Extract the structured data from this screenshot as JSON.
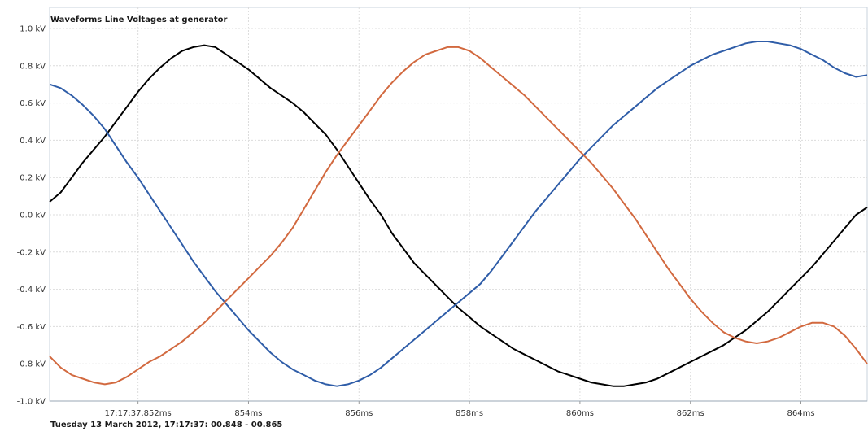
{
  "chart_data": {
    "type": "line",
    "title": "Waveforms Line Voltages at generator",
    "footer": "Tuesday 13 March 2012, 17:17:37: 00.848 - 00.865",
    "xlabel": "",
    "ylabel": "",
    "x_unit": "ms",
    "xlim": [
      850.4,
      865.2
    ],
    "ylim": [
      -1.0,
      1.0
    ],
    "grid": true,
    "legend": "none",
    "y_ticks": [
      {
        "value": 1.0,
        "label": "1.0 kV"
      },
      {
        "value": 0.8,
        "label": "0.8 kV"
      },
      {
        "value": 0.6,
        "label": "0.6 kV"
      },
      {
        "value": 0.4,
        "label": "0.4 kV"
      },
      {
        "value": 0.2,
        "label": "0.2 kV"
      },
      {
        "value": 0.0,
        "label": "0.0 kV"
      },
      {
        "value": -0.2,
        "label": "-0.2 kV"
      },
      {
        "value": -0.4,
        "label": "-0.4 kV"
      },
      {
        "value": -0.6,
        "label": "-0.6 kV"
      },
      {
        "value": -0.8,
        "label": "-0.8 kV"
      },
      {
        "value": -1.0,
        "label": "-1.0 kV"
      }
    ],
    "x_ticks": [
      {
        "value": 852,
        "label": "17:17:37.852ms"
      },
      {
        "value": 854,
        "label": "854ms"
      },
      {
        "value": 856,
        "label": "856ms"
      },
      {
        "value": 858,
        "label": "858ms"
      },
      {
        "value": 860,
        "label": "860ms"
      },
      {
        "value": 862,
        "label": "862ms"
      },
      {
        "value": 864,
        "label": "864ms"
      }
    ],
    "series": [
      {
        "color": "#000000",
        "x": [
          850.4,
          850.6,
          850.8,
          851.0,
          851.2,
          851.4,
          851.6,
          851.8,
          852.0,
          852.2,
          852.4,
          852.6,
          852.8,
          853.0,
          853.2,
          853.4,
          853.6,
          853.8,
          854.0,
          854.2,
          854.4,
          854.6,
          854.8,
          855.0,
          855.2,
          855.4,
          855.6,
          855.8,
          856.0,
          856.2,
          856.4,
          856.6,
          856.8,
          857.0,
          857.2,
          857.4,
          857.6,
          857.8,
          858.0,
          858.2,
          858.4,
          858.6,
          858.8,
          859.0,
          859.2,
          859.4,
          859.6,
          859.8,
          860.0,
          860.2,
          860.4,
          860.6,
          860.8,
          861.0,
          861.2,
          861.4,
          861.6,
          861.8,
          862.0,
          862.2,
          862.4,
          862.6,
          862.8,
          863.0,
          863.2,
          863.4,
          863.6,
          863.8,
          864.0,
          864.2,
          864.4,
          864.6,
          864.8,
          865.0,
          865.2
        ],
        "values": [
          0.07,
          0.12,
          0.2,
          0.28,
          0.35,
          0.42,
          0.5,
          0.58,
          0.66,
          0.73,
          0.79,
          0.84,
          0.88,
          0.9,
          0.91,
          0.9,
          0.86,
          0.82,
          0.78,
          0.73,
          0.68,
          0.64,
          0.6,
          0.55,
          0.49,
          0.43,
          0.35,
          0.26,
          0.17,
          0.08,
          0.0,
          -0.1,
          -0.18,
          -0.26,
          -0.32,
          -0.38,
          -0.44,
          -0.5,
          -0.55,
          -0.6,
          -0.64,
          -0.68,
          -0.72,
          -0.75,
          -0.78,
          -0.81,
          -0.84,
          -0.86,
          -0.88,
          -0.9,
          -0.91,
          -0.92,
          -0.92,
          -0.91,
          -0.9,
          -0.88,
          -0.85,
          -0.82,
          -0.79,
          -0.76,
          -0.73,
          -0.7,
          -0.66,
          -0.62,
          -0.57,
          -0.52,
          -0.46,
          -0.4,
          -0.34,
          -0.28,
          -0.21,
          -0.14,
          -0.07,
          0.0,
          0.04
        ]
      },
      {
        "color": "#2f5da8",
        "x": [
          850.4,
          850.6,
          850.8,
          851.0,
          851.2,
          851.4,
          851.6,
          851.8,
          852.0,
          852.2,
          852.4,
          852.6,
          852.8,
          853.0,
          853.2,
          853.4,
          853.6,
          853.8,
          854.0,
          854.2,
          854.4,
          854.6,
          854.8,
          855.0,
          855.2,
          855.4,
          855.6,
          855.8,
          856.0,
          856.2,
          856.4,
          856.6,
          856.8,
          857.0,
          857.2,
          857.4,
          857.6,
          857.8,
          858.0,
          858.2,
          858.4,
          858.6,
          858.8,
          859.0,
          859.2,
          859.4,
          859.6,
          859.8,
          860.0,
          860.2,
          860.4,
          860.6,
          860.8,
          861.0,
          861.2,
          861.4,
          861.6,
          861.8,
          862.0,
          862.2,
          862.4,
          862.6,
          862.8,
          863.0,
          863.2,
          863.4,
          863.6,
          863.8,
          864.0,
          864.2,
          864.4,
          864.6,
          864.8,
          865.0,
          865.2
        ],
        "values": [
          0.7,
          0.68,
          0.64,
          0.59,
          0.53,
          0.46,
          0.37,
          0.28,
          0.2,
          0.11,
          0.02,
          -0.07,
          -0.16,
          -0.25,
          -0.33,
          -0.41,
          -0.48,
          -0.55,
          -0.62,
          -0.68,
          -0.74,
          -0.79,
          -0.83,
          -0.86,
          -0.89,
          -0.91,
          -0.92,
          -0.91,
          -0.89,
          -0.86,
          -0.82,
          -0.77,
          -0.72,
          -0.67,
          -0.62,
          -0.57,
          -0.52,
          -0.47,
          -0.42,
          -0.37,
          -0.3,
          -0.22,
          -0.14,
          -0.06,
          0.02,
          0.09,
          0.16,
          0.23,
          0.3,
          0.36,
          0.42,
          0.48,
          0.53,
          0.58,
          0.63,
          0.68,
          0.72,
          0.76,
          0.8,
          0.83,
          0.86,
          0.88,
          0.9,
          0.92,
          0.93,
          0.93,
          0.92,
          0.91,
          0.89,
          0.86,
          0.83,
          0.79,
          0.76,
          0.74,
          0.75
        ]
      },
      {
        "color": "#d2693f",
        "x": [
          850.4,
          850.6,
          850.8,
          851.0,
          851.2,
          851.4,
          851.6,
          851.8,
          852.0,
          852.2,
          852.4,
          852.6,
          852.8,
          853.0,
          853.2,
          853.4,
          853.6,
          853.8,
          854.0,
          854.2,
          854.4,
          854.6,
          854.8,
          855.0,
          855.2,
          855.4,
          855.6,
          855.8,
          856.0,
          856.2,
          856.4,
          856.6,
          856.8,
          857.0,
          857.2,
          857.4,
          857.6,
          857.8,
          858.0,
          858.2,
          858.4,
          858.6,
          858.8,
          859.0,
          859.2,
          859.4,
          859.6,
          859.8,
          860.0,
          860.2,
          860.4,
          860.6,
          860.8,
          861.0,
          861.2,
          861.4,
          861.6,
          861.8,
          862.0,
          862.2,
          862.4,
          862.6,
          862.8,
          863.0,
          863.2,
          863.4,
          863.6,
          863.8,
          864.0,
          864.2,
          864.4,
          864.6,
          864.8,
          865.0,
          865.2
        ],
        "values": [
          -0.76,
          -0.82,
          -0.86,
          -0.88,
          -0.9,
          -0.91,
          -0.9,
          -0.87,
          -0.83,
          -0.79,
          -0.76,
          -0.72,
          -0.68,
          -0.63,
          -0.58,
          -0.52,
          -0.46,
          -0.4,
          -0.34,
          -0.28,
          -0.22,
          -0.15,
          -0.07,
          0.03,
          0.13,
          0.23,
          0.32,
          0.4,
          0.48,
          0.56,
          0.64,
          0.71,
          0.77,
          0.82,
          0.86,
          0.88,
          0.9,
          0.9,
          0.88,
          0.84,
          0.79,
          0.74,
          0.69,
          0.64,
          0.58,
          0.52,
          0.46,
          0.4,
          0.34,
          0.28,
          0.21,
          0.14,
          0.06,
          -0.02,
          -0.11,
          -0.2,
          -0.29,
          -0.37,
          -0.45,
          -0.52,
          -0.58,
          -0.63,
          -0.66,
          -0.68,
          -0.69,
          -0.68,
          -0.66,
          -0.63,
          -0.6,
          -0.58,
          -0.58,
          -0.6,
          -0.65,
          -0.72,
          -0.8
        ]
      }
    ]
  }
}
